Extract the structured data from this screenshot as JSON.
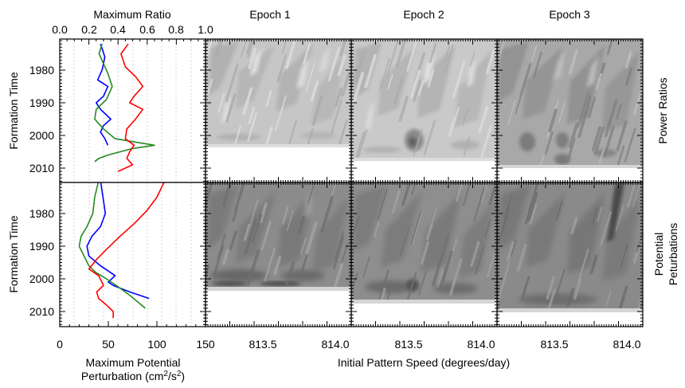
{
  "figure": {
    "top_axis_title": "Maximum Ratio",
    "top_axis_ticks": [
      "0.0",
      "0.2",
      "0.4",
      "0.6",
      "0.8",
      "1.0"
    ],
    "bottom_left_title_line1": "Maximum Potential",
    "bottom_left_title_line2_pre": "Perturbation (cm",
    "bottom_left_title_sup1": "2",
    "bottom_left_title_mid": "/s",
    "bottom_left_title_sup2": "2",
    "bottom_left_title_post": ")",
    "bottom_left_ticks": [
      "0",
      "50",
      "100",
      "150"
    ],
    "y_title": "Formation Time",
    "y_ticks": [
      "1980",
      "1990",
      "2000",
      "2010"
    ],
    "x_title": "Initial Pattern Speed (degrees/day)",
    "x_ticks": [
      "813.5",
      "814.0"
    ],
    "row_label_top": "Power Ratios",
    "row_label_bottom_1": "Potential",
    "row_label_bottom_2": "Peturbations",
    "epochs": [
      {
        "label": "Epoch 1",
        "color": "#0000ff"
      },
      {
        "label": "Epoch 2",
        "color": "#228b22"
      },
      {
        "label": "Epoch 3",
        "color": "#ff0000"
      }
    ]
  },
  "chart_data": [
    {
      "type": "line",
      "panel": "power-ratios-profile",
      "xlabel": "Maximum Ratio",
      "ylabel": "Formation Time",
      "xlim": [
        0.0,
        1.0
      ],
      "ylim": [
        2015,
        1970
      ],
      "series": [
        {
          "name": "Epoch 1",
          "color": "#0000ff",
          "points": [
            [
              0.28,
              1972
            ],
            [
              0.31,
              1976
            ],
            [
              0.29,
              1980
            ],
            [
              0.26,
              1983
            ],
            [
              0.33,
              1985
            ],
            [
              0.3,
              1988
            ],
            [
              0.25,
              1990
            ],
            [
              0.28,
              1992
            ],
            [
              0.35,
              1995
            ],
            [
              0.3,
              1997
            ],
            [
              0.28,
              1999
            ],
            [
              0.31,
              2001
            ],
            [
              0.33,
              2003
            ]
          ]
        },
        {
          "name": "Epoch 2",
          "color": "#228b22",
          "points": [
            [
              0.29,
              1972
            ],
            [
              0.27,
              1975
            ],
            [
              0.3,
              1978
            ],
            [
              0.33,
              1981
            ],
            [
              0.36,
              1985
            ],
            [
              0.32,
              1989
            ],
            [
              0.25,
              1992
            ],
            [
              0.24,
              1995
            ],
            [
              0.3,
              1998
            ],
            [
              0.38,
              2001
            ],
            [
              0.65,
              2003
            ],
            [
              0.5,
              2004
            ],
            [
              0.33,
              2006
            ],
            [
              0.27,
              2007
            ],
            [
              0.24,
              2008
            ]
          ]
        },
        {
          "name": "Epoch 3",
          "color": "#ff0000",
          "points": [
            [
              0.47,
              1972
            ],
            [
              0.42,
              1975
            ],
            [
              0.45,
              1979
            ],
            [
              0.52,
              1982
            ],
            [
              0.57,
              1985
            ],
            [
              0.51,
              1988
            ],
            [
              0.48,
              1990
            ],
            [
              0.57,
              1992
            ],
            [
              0.52,
              1995
            ],
            [
              0.46,
              1998
            ],
            [
              0.45,
              2001
            ],
            [
              0.51,
              2003
            ],
            [
              0.48,
              2005
            ],
            [
              0.46,
              2007
            ],
            [
              0.5,
              2009
            ],
            [
              0.4,
              2011
            ]
          ]
        }
      ]
    },
    {
      "type": "line",
      "panel": "potential-perturbations-profile",
      "xlabel": "Maximum Potential Perturbation (cm^2/s^2)",
      "ylabel": "Formation Time",
      "xlim": [
        0,
        150
      ],
      "ylim": [
        2015,
        1970
      ],
      "series": [
        {
          "name": "Epoch 1",
          "color": "#0000ff",
          "points": [
            [
              42,
              1970
            ],
            [
              45,
              1976
            ],
            [
              47,
              1980
            ],
            [
              42,
              1984
            ],
            [
              33,
              1987
            ],
            [
              28,
              1990
            ],
            [
              30,
              1993
            ],
            [
              42,
              1996
            ],
            [
              52,
              1998
            ],
            [
              57,
              1999
            ],
            [
              50,
              2001
            ],
            [
              55,
              2002
            ],
            [
              72,
              2004
            ],
            [
              92,
              2006
            ]
          ]
        },
        {
          "name": "Epoch 2",
          "color": "#228b22",
          "points": [
            [
              40,
              1970
            ],
            [
              36,
              1975
            ],
            [
              34,
              1980
            ],
            [
              28,
              1984
            ],
            [
              22,
              1987
            ],
            [
              20,
              1990
            ],
            [
              25,
              1993
            ],
            [
              30,
              1996
            ],
            [
              37,
              1998
            ],
            [
              48,
              2000
            ],
            [
              58,
              2002
            ],
            [
              72,
              2005
            ],
            [
              88,
              2009
            ]
          ]
        },
        {
          "name": "Epoch 3",
          "color": "#ff0000",
          "points": [
            [
              108,
              1970
            ],
            [
              100,
              1975
            ],
            [
              90,
              1979
            ],
            [
              77,
              1983
            ],
            [
              62,
              1987
            ],
            [
              48,
              1991
            ],
            [
              38,
              1994
            ],
            [
              30,
              1997
            ],
            [
              40,
              1999
            ],
            [
              45,
              2002
            ],
            [
              38,
              2004
            ],
            [
              40,
              2006
            ],
            [
              48,
              2008
            ],
            [
              55,
              2010
            ],
            [
              55,
              2012
            ]
          ]
        }
      ]
    }
  ]
}
